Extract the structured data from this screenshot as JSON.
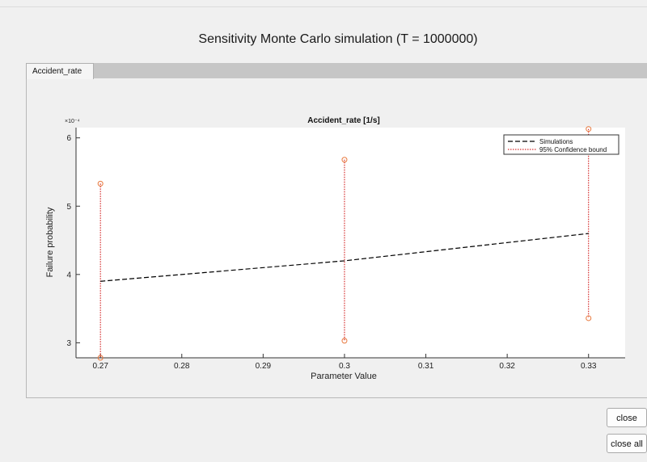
{
  "window": {
    "title": "Sensitivity Monte Carlo simulation (T = 1000000)"
  },
  "tabs": [
    {
      "label": "Accident_rate",
      "active": true
    }
  ],
  "buttons": {
    "close": "close",
    "close_all": "close all"
  },
  "chart_data": {
    "type": "line",
    "title": "Accident_rate  [1/s]",
    "xlabel": "Parameter Value",
    "ylabel": "Failure probability",
    "y_exponent_label": "×10⁻⁴",
    "y_multiplier": 0.0001,
    "xlim": [
      0.267,
      0.3345
    ],
    "ylim": [
      2.78,
      6.15
    ],
    "xticks": [
      0.27,
      0.28,
      0.29,
      0.3,
      0.31,
      0.32,
      0.33
    ],
    "xtick_labels": [
      "0.27",
      "0.28",
      "0.29",
      "0.3",
      "0.31",
      "0.32",
      "0.33"
    ],
    "yticks": [
      3,
      4,
      5,
      6
    ],
    "ytick_labels": [
      "3",
      "4",
      "5",
      "6"
    ],
    "grid": false,
    "legend_position": "top-right",
    "series": [
      {
        "name": "Simulations",
        "style": "dashed",
        "color": "#000000",
        "x": [
          0.27,
          0.3,
          0.33
        ],
        "y": [
          3.9,
          4.2,
          4.6
        ]
      },
      {
        "name": "95% Confidence bound",
        "style": "dotted",
        "color": "#cc0000",
        "x": [
          0.27,
          0.3,
          0.33
        ],
        "lower": [
          2.78,
          3.03,
          3.36
        ],
        "upper": [
          5.33,
          5.68,
          6.13
        ]
      }
    ],
    "marker_color": "#e8783c"
  }
}
